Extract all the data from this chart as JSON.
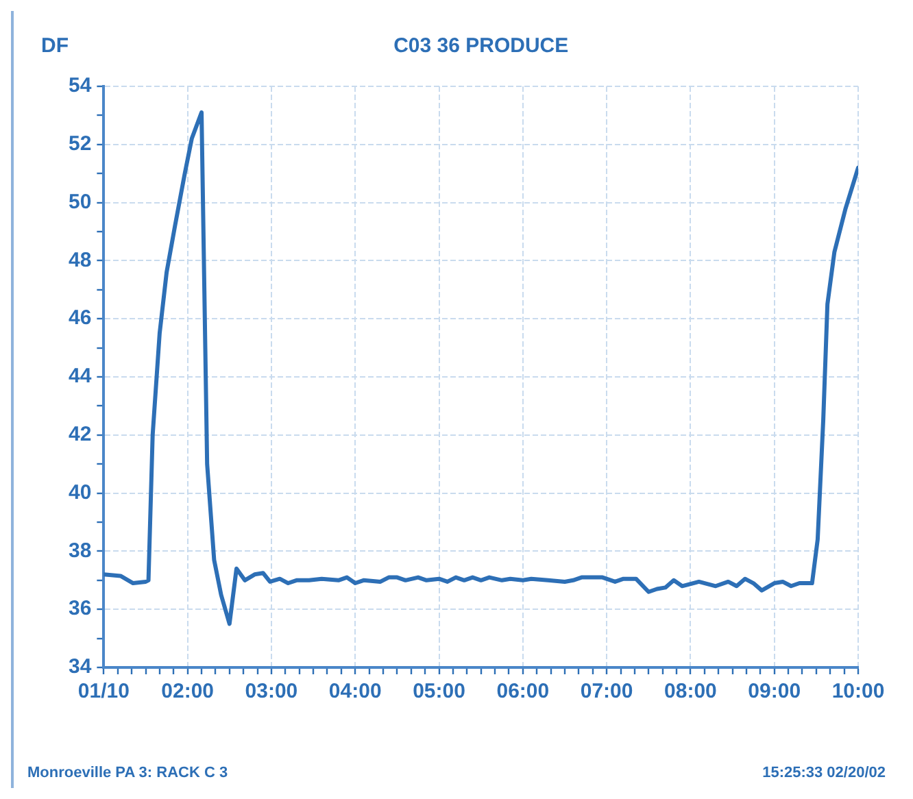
{
  "chart_data": {
    "type": "line",
    "title": "C03 36 PRODUCE",
    "ylabel": "DF",
    "annotations": [
      "Monroeville PA 3: RACK C 3",
      "15:25:33 02/20/02"
    ],
    "xlim": [
      "--01-10T01:00",
      "--01-10T10:00"
    ],
    "ylim": [
      34,
      54
    ],
    "xticks": [
      {
        "value": "--01-10T01:00",
        "label": "01/10"
      },
      {
        "value": "--01-10T01:10",
        "label": null
      },
      {
        "value": "--01-10T01:20",
        "label": null
      },
      {
        "value": "--01-10T01:30",
        "label": null
      },
      {
        "value": "--01-10T01:40",
        "label": null
      },
      {
        "value": "--01-10T01:50",
        "label": null
      },
      {
        "value": "--01-10T02:00",
        "label": "02:00"
      },
      {
        "value": "--01-10T02:10",
        "label": null
      },
      {
        "value": "--01-10T02:20",
        "label": null
      },
      {
        "value": "--01-10T02:30",
        "label": null
      },
      {
        "value": "--01-10T02:40",
        "label": null
      },
      {
        "value": "--01-10T02:50",
        "label": null
      },
      {
        "value": "--01-10T03:00",
        "label": "03:00"
      },
      {
        "value": "--01-10T03:10",
        "label": null
      },
      {
        "value": "--01-10T03:20",
        "label": null
      },
      {
        "value": "--01-10T03:30",
        "label": null
      },
      {
        "value": "--01-10T03:40",
        "label": null
      },
      {
        "value": "--01-10T03:50",
        "label": null
      },
      {
        "value": "--01-10T04:00",
        "label": "04:00"
      },
      {
        "value": "--01-10T04:10",
        "label": null
      },
      {
        "value": "--01-10T04:20",
        "label": null
      },
      {
        "value": "--01-10T04:30",
        "label": null
      },
      {
        "value": "--01-10T04:40",
        "label": null
      },
      {
        "value": "--01-10T04:50",
        "label": null
      },
      {
        "value": "--01-10T05:00",
        "label": "05:00"
      },
      {
        "value": "--01-10T05:10",
        "label": null
      },
      {
        "value": "--01-10T05:20",
        "label": null
      },
      {
        "value": "--01-10T05:30",
        "label": null
      },
      {
        "value": "--01-10T05:40",
        "label": null
      },
      {
        "value": "--01-10T05:50",
        "label": null
      },
      {
        "value": "--01-10T06:00",
        "label": "06:00"
      },
      {
        "value": "--01-10T06:10",
        "label": null
      },
      {
        "value": "--01-10T06:20",
        "label": null
      },
      {
        "value": "--01-10T06:30",
        "label": null
      },
      {
        "value": "--01-10T06:40",
        "label": null
      },
      {
        "value": "--01-10T06:50",
        "label": null
      },
      {
        "value": "--01-10T07:00",
        "label": "07:00"
      },
      {
        "value": "--01-10T07:10",
        "label": null
      },
      {
        "value": "--01-10T07:20",
        "label": null
      },
      {
        "value": "--01-10T07:30",
        "label": null
      },
      {
        "value": "--01-10T07:40",
        "label": null
      },
      {
        "value": "--01-10T07:50",
        "label": null
      },
      {
        "value": "--01-10T08:00",
        "label": "08:00"
      },
      {
        "value": "--01-10T08:10",
        "label": null
      },
      {
        "value": "--01-10T08:20",
        "label": null
      },
      {
        "value": "--01-10T08:30",
        "label": null
      },
      {
        "value": "--01-10T08:40",
        "label": null
      },
      {
        "value": "--01-10T08:50",
        "label": null
      },
      {
        "value": "--01-10T09:00",
        "label": "09:00"
      },
      {
        "value": "--01-10T09:10",
        "label": null
      },
      {
        "value": "--01-10T09:20",
        "label": null
      },
      {
        "value": "--01-10T09:30",
        "label": null
      },
      {
        "value": "--01-10T09:40",
        "label": null
      },
      {
        "value": "--01-10T09:50",
        "label": null
      },
      {
        "value": "--01-10T10:00",
        "label": "10:00"
      }
    ],
    "yticks": [
      34,
      {
        "value": 35,
        "label": null
      },
      36,
      {
        "value": 37,
        "label": null
      },
      38,
      {
        "value": 39,
        "label": null
      },
      40,
      {
        "value": 41,
        "label": null
      },
      42,
      {
        "value": 43,
        "label": null
      },
      44,
      {
        "value": 45,
        "label": null
      },
      46,
      {
        "value": 47,
        "label": null
      },
      48,
      {
        "value": 49,
        "label": null
      },
      50,
      {
        "value": 51,
        "label": null
      },
      52,
      {
        "value": 53,
        "label": null
      },
      54
    ],
    "grid": true,
    "marker": "none",
    "line_style": "solid",
    "x": [
      "--01-10T01:00",
      "--01-10T01:12",
      "--01-10T01:21",
      "--01-10T01:30",
      "--01-10T01:32",
      "--01-10T01:35",
      "--01-10T01:40",
      "--01-10T01:45",
      "--01-10T01:51",
      "--01-10T01:58",
      "--01-10T02:03",
      "--01-10T02:10",
      "--01-10T02:13",
      "--01-10T02:14",
      "--01-10T02:19",
      "--01-10T02:24",
      "--01-10T02:30",
      "--01-10T02:35",
      "--01-10T02:41",
      "--01-10T02:48",
      "--01-10T02:54",
      "--01-10T02:59",
      "--01-10T03:06",
      "--01-10T03:12",
      "--01-10T03:18",
      "--01-10T03:27",
      "--01-10T03:36",
      "--01-10T03:48",
      "--01-10T03:54",
      "--01-10T04:00",
      "--01-10T04:06",
      "--01-10T04:18",
      "--01-10T04:24",
      "--01-10T04:30",
      "--01-10T04:36",
      "--01-10T04:45",
      "--01-10T04:51",
      "--01-10T05:00",
      "--01-10T05:06",
      "--01-10T05:12",
      "--01-10T05:18",
      "--01-10T05:24",
      "--01-10T05:30",
      "--01-10T05:36",
      "--01-10T05:45",
      "--01-10T05:51",
      "--01-10T06:00",
      "--01-10T06:06",
      "--01-10T06:18",
      "--01-10T06:30",
      "--01-10T06:36",
      "--01-10T06:42",
      "--01-10T06:48",
      "--01-10T06:57",
      "--01-10T07:06",
      "--01-10T07:12",
      "--01-10T07:21",
      "--01-10T07:30",
      "--01-10T07:36",
      "--01-10T07:42",
      "--01-10T07:48",
      "--01-10T07:54",
      "--01-10T08:06",
      "--01-10T08:18",
      "--01-10T08:27",
      "--01-10T08:33",
      "--01-10T08:39",
      "--01-10T08:45",
      "--01-10T08:51",
      "--01-10T09:00",
      "--01-10T09:06",
      "--01-10T09:12",
      "--01-10T09:18",
      "--01-10T09:27",
      "--01-10T09:31",
      "--01-10T09:35",
      "--01-10T09:38",
      "--01-10T09:43",
      "--01-10T09:51",
      "--01-10T10:00"
    ],
    "series": [
      {
        "color": "#2d6fb6",
        "values": [
          37.2,
          37.15,
          36.9,
          36.95,
          37.0,
          42.0,
          45.5,
          47.6,
          49.2,
          51.0,
          52.2,
          53.1,
          44.0,
          41.0,
          37.7,
          36.5,
          35.5,
          37.4,
          37.0,
          37.2,
          37.25,
          36.95,
          37.05,
          36.9,
          37.0,
          37.0,
          37.05,
          37.0,
          37.1,
          36.9,
          37.0,
          36.95,
          37.1,
          37.1,
          37.0,
          37.1,
          37.0,
          37.05,
          36.95,
          37.1,
          37.0,
          37.1,
          37.0,
          37.1,
          37.0,
          37.05,
          37.0,
          37.05,
          37.0,
          36.95,
          37.0,
          37.1,
          37.1,
          37.1,
          36.95,
          37.05,
          37.05,
          36.6,
          36.7,
          36.75,
          37.0,
          36.8,
          36.95,
          36.8,
          36.95,
          36.8,
          37.05,
          36.9,
          36.65,
          36.9,
          36.95,
          36.8,
          36.9,
          36.9,
          38.4,
          42.5,
          46.5,
          48.3,
          49.8,
          51.2
        ]
      }
    ]
  }
}
